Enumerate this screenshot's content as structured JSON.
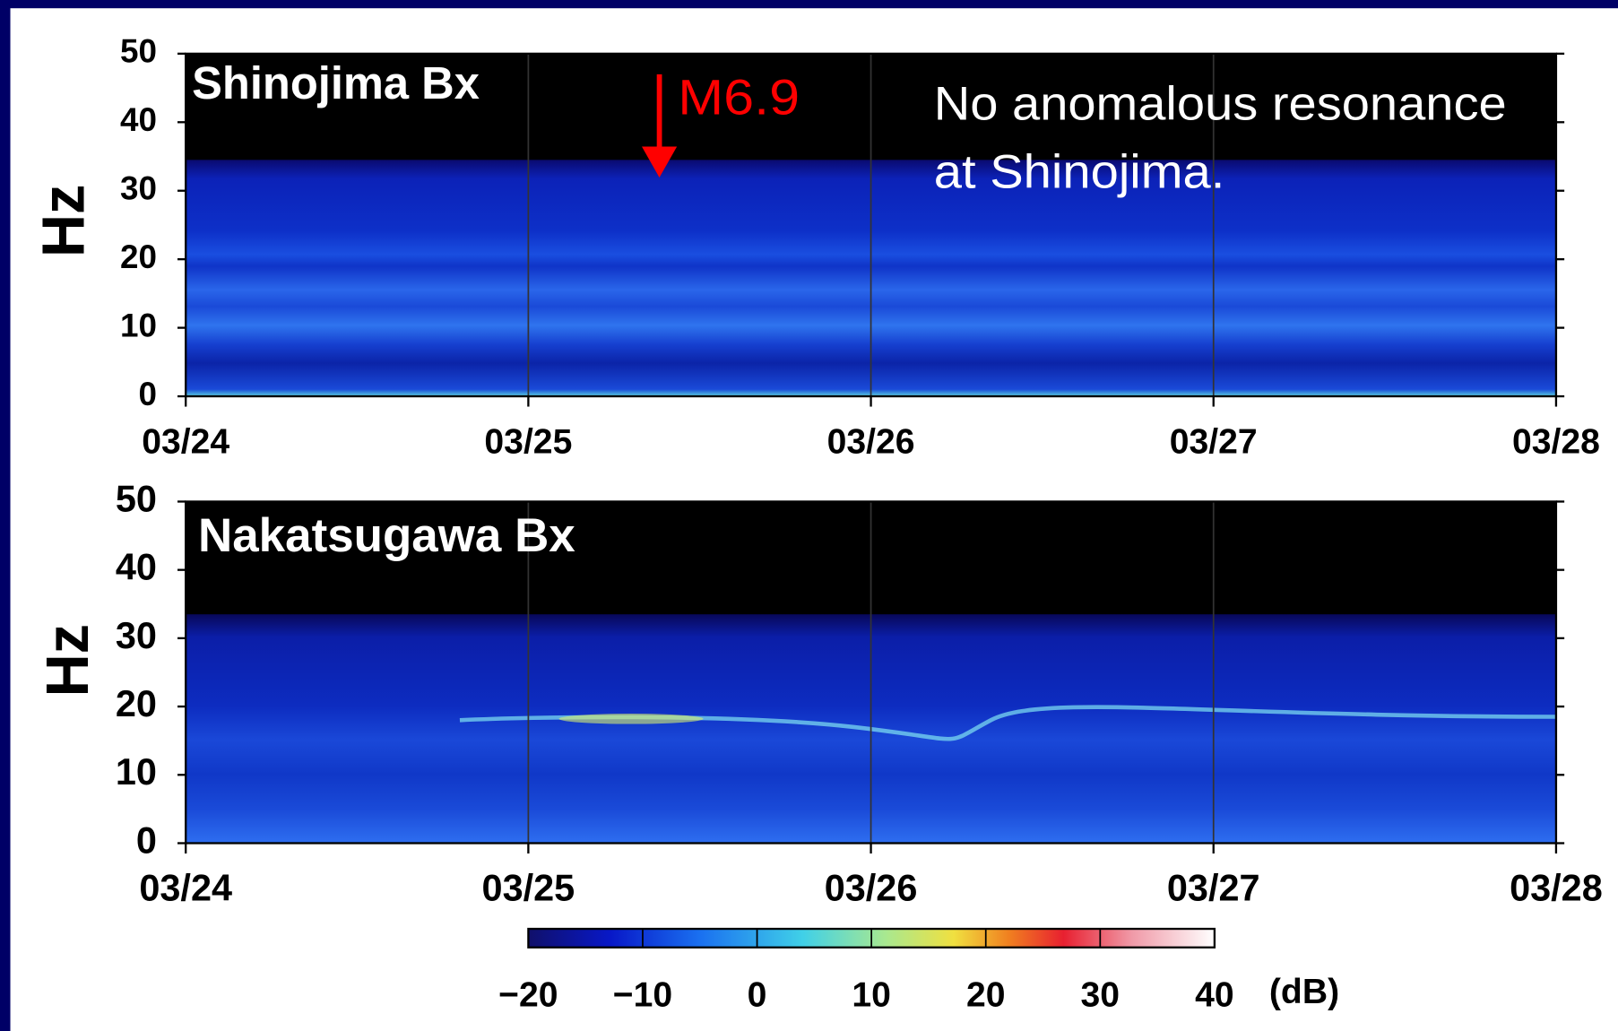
{
  "chart_data": [
    {
      "type": "spectrogram",
      "title": "Shinojima Bx",
      "ylabel": "Hz",
      "categories": [
        "03/24",
        "03/25",
        "03/26",
        "03/27",
        "03/28"
      ],
      "ylim": [
        0,
        50
      ],
      "yticks": [
        0,
        10,
        20,
        30,
        40,
        50
      ],
      "annotations": [
        "M6.9",
        "No anomalous resonance",
        "at Shinojima."
      ],
      "annotation_color": "#ff0000"
    },
    {
      "type": "spectrogram",
      "title": "Nakatsugawa Bx",
      "ylabel": "Hz",
      "categories": [
        "03/24",
        "03/25",
        "03/26",
        "03/27",
        "03/28"
      ],
      "ylim": [
        0,
        50
      ],
      "yticks": [
        0,
        10,
        20,
        30,
        40,
        50
      ]
    },
    {
      "type": "colorbar",
      "unit": "(dB)",
      "xlim": [
        -20,
        40
      ],
      "xticks": [
        {
          "value": -20,
          "label": "−20"
        },
        {
          "value": -10,
          "label": "−10"
        },
        0,
        10,
        20,
        30,
        40
      ]
    }
  ]
}
